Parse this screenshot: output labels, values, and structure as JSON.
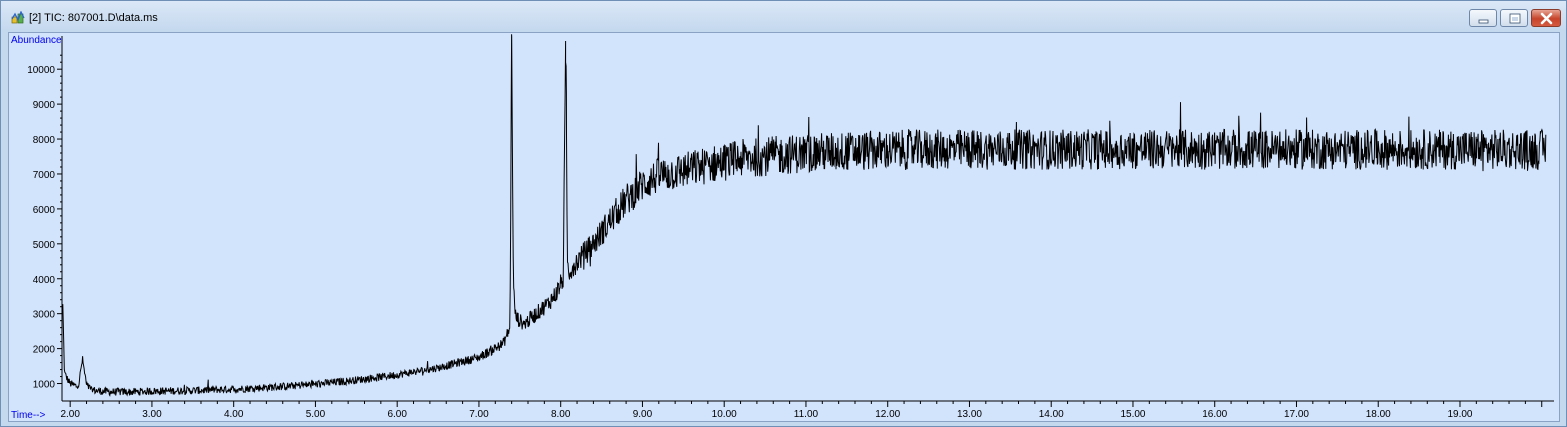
{
  "window": {
    "title": "[2] TIC: 807001.D\\data.ms",
    "icon": "chromatogram-app-icon",
    "controls": [
      "minimize-icon",
      "maximize-icon",
      "close-icon"
    ],
    "colors": {
      "plot_background": "#d2e3fc",
      "trace": "#000000",
      "axis_label": "#0000ee",
      "close_button": "#c6442b"
    }
  },
  "chart_data": {
    "type": "line",
    "ylabel": "Abundance",
    "xlabel": "Time-->",
    "xlim": [
      1.9,
      20.15
    ],
    "ylim": [
      500,
      10950
    ],
    "x_ticks": [
      "2.00",
      "3.00",
      "4.00",
      "5.00",
      "6.00",
      "7.00",
      "8.00",
      "9.00",
      "10.00",
      "11.00",
      "12.00",
      "13.00",
      "14.00",
      "15.00",
      "16.00",
      "17.00",
      "18.00",
      "19.00"
    ],
    "y_ticks": [
      "1000",
      "2000",
      "3000",
      "4000",
      "5000",
      "6000",
      "7000",
      "8000",
      "9000",
      "10000"
    ],
    "grid": false,
    "legend": "none",
    "series": [
      {
        "x": [
          1.91,
          1.93,
          1.96,
          2.0,
          2.05,
          2.1,
          2.15,
          2.2,
          2.25,
          2.3,
          2.4,
          2.5,
          2.75,
          3.0,
          3.5,
          4.0,
          4.5,
          5.0,
          5.5,
          6.0,
          6.5,
          7.0,
          7.3,
          7.38,
          7.4,
          7.41,
          7.42,
          7.45,
          7.55,
          7.7,
          7.85,
          7.95,
          8.03,
          8.06,
          8.07,
          8.08,
          8.1,
          8.2,
          8.4,
          8.6,
          8.8,
          9.0,
          9.2,
          9.4,
          9.6,
          9.8,
          10.0,
          10.25,
          10.5,
          10.75,
          11.0,
          11.5,
          12.0,
          12.5,
          13.0,
          14.0,
          15.0,
          16.0,
          17.0,
          18.0,
          19.0,
          19.5,
          20.05
        ],
        "y": [
          3200,
          1300,
          1150,
          1000,
          950,
          900,
          1700,
          950,
          850,
          800,
          780,
          760,
          760,
          780,
          800,
          840,
          900,
          980,
          1100,
          1250,
          1450,
          1750,
          2150,
          2600,
          11000,
          7800,
          3800,
          2900,
          2700,
          3000,
          3300,
          3600,
          4000,
          10200,
          9300,
          4500,
          4200,
          4500,
          5000,
          5650,
          6250,
          6700,
          6950,
          7050,
          7150,
          7250,
          7350,
          7450,
          7500,
          7550,
          7600,
          7650,
          7680,
          7700,
          7700,
          7700,
          7700,
          7700,
          7700,
          7700,
          7700,
          7700,
          7700
        ],
        "color": "#000000"
      }
    ]
  }
}
